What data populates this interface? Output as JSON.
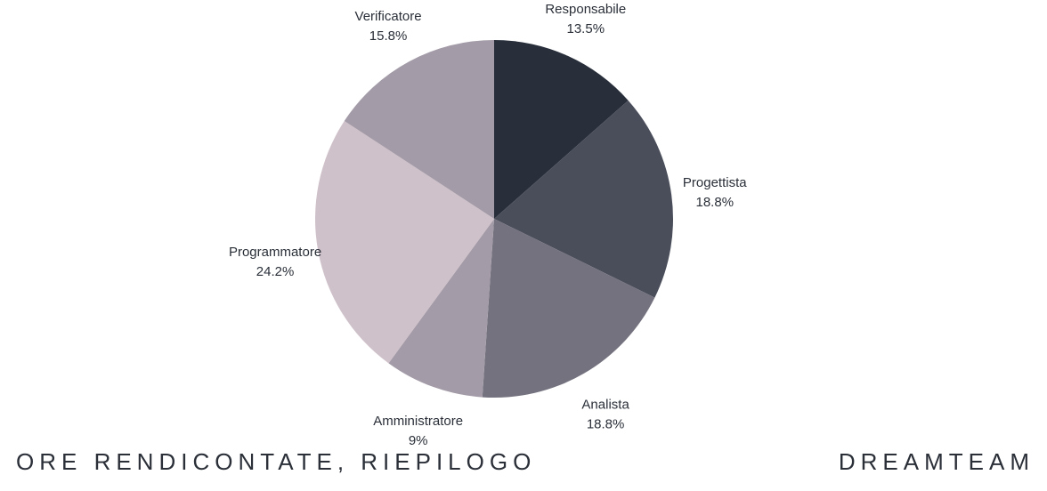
{
  "footer": {
    "title": "ORE RENDICONTATE, RIEPILOGO",
    "brand": "DREAMTEAM"
  },
  "chart_data": {
    "type": "pie",
    "title": "",
    "start_angle_deg": 0,
    "direction": "clockwise",
    "slices": [
      {
        "label": "Responsabile",
        "value": 13.5,
        "display": "13.5%",
        "color": "#282f3b"
      },
      {
        "label": "Progettista",
        "value": 18.8,
        "display": "18.8%",
        "color": "#4a4e5b"
      },
      {
        "label": "Analista",
        "value": 18.8,
        "display": "18.8%",
        "color": "#75727f"
      },
      {
        "label": "Amministratore",
        "value": 9,
        "display": "9%",
        "color": "#a39ba7"
      },
      {
        "label": "Programmatore",
        "value": 24.2,
        "display": "24.2%",
        "color": "#cfc1c9"
      },
      {
        "label": "Verificatore",
        "value": 15.8,
        "display": "15.8%",
        "color": "#a39ba7"
      }
    ]
  }
}
